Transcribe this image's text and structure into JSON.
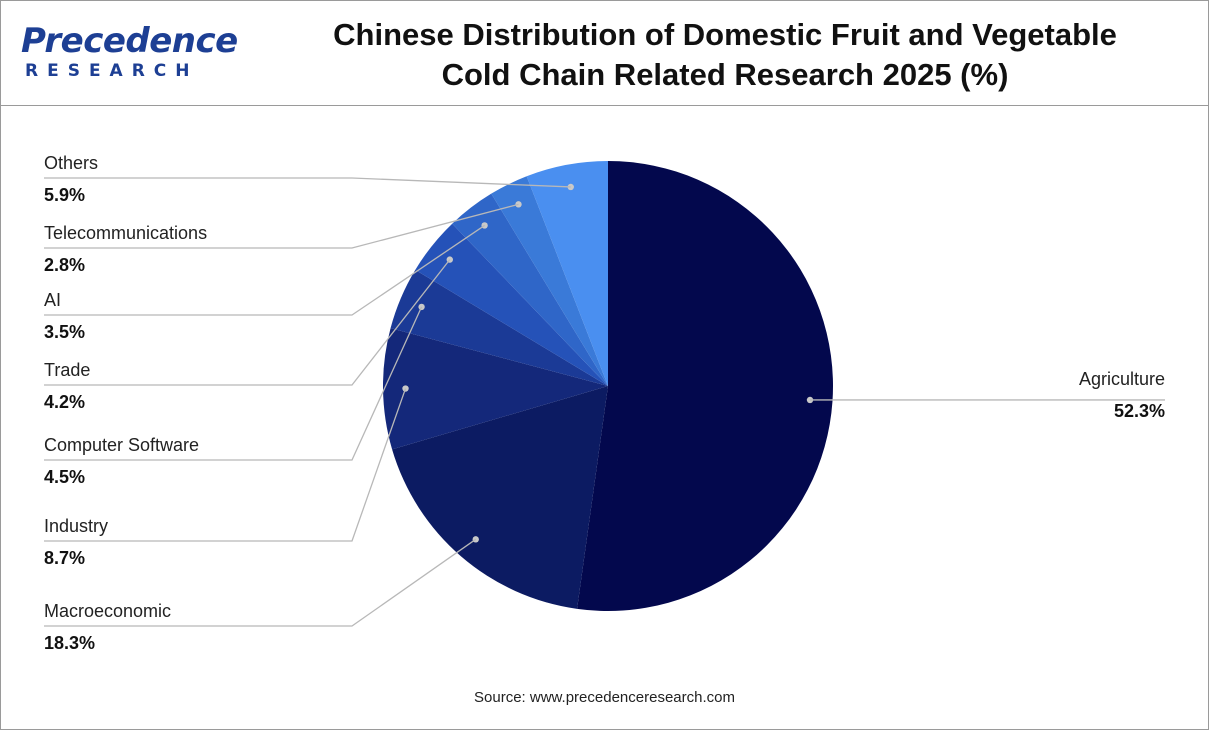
{
  "brand": {
    "name": "Precedence",
    "sub": "RESEARCH",
    "color": "#1d3f94"
  },
  "title_lines": [
    "Chinese Distribution of Domestic Fruit and Vegetable",
    "Cold Chain Related Research 2025 (%)"
  ],
  "source": "Source: www.precedenceresearch.com",
  "chart_data": {
    "type": "pie",
    "title": "Chinese Distribution of Domestic Fruit and Vegetable Cold Chain Related Research 2025 (%)",
    "unit": "%",
    "start_angle_deg": 0,
    "direction": "clockwise",
    "slices": [
      {
        "label": "Agriculture",
        "value": 52.3,
        "display": "52.3%",
        "color": "#03084d",
        "side": "right"
      },
      {
        "label": "Macroeconomic",
        "value": 18.3,
        "display": "18.3%",
        "color": "#0c1b62",
        "side": "left"
      },
      {
        "label": "Industry",
        "value": 8.7,
        "display": "8.7%",
        "color": "#14287a",
        "side": "left"
      },
      {
        "label": "Computer Software",
        "value": 4.5,
        "display": "4.5%",
        "color": "#1b3a96",
        "side": "left"
      },
      {
        "label": "Trade",
        "value": 4.2,
        "display": "4.2%",
        "color": "#2552b8",
        "side": "left"
      },
      {
        "label": "AI",
        "value": 3.5,
        "display": "3.5%",
        "color": "#2f66c8",
        "side": "left"
      },
      {
        "label": "Telecommunications",
        "value": 2.8,
        "display": "2.8%",
        "color": "#3a7ad8",
        "side": "left"
      },
      {
        "label": "Others",
        "value": 5.9,
        "display": "5.9%",
        "color": "#4a8ff0",
        "side": "left"
      }
    ]
  }
}
